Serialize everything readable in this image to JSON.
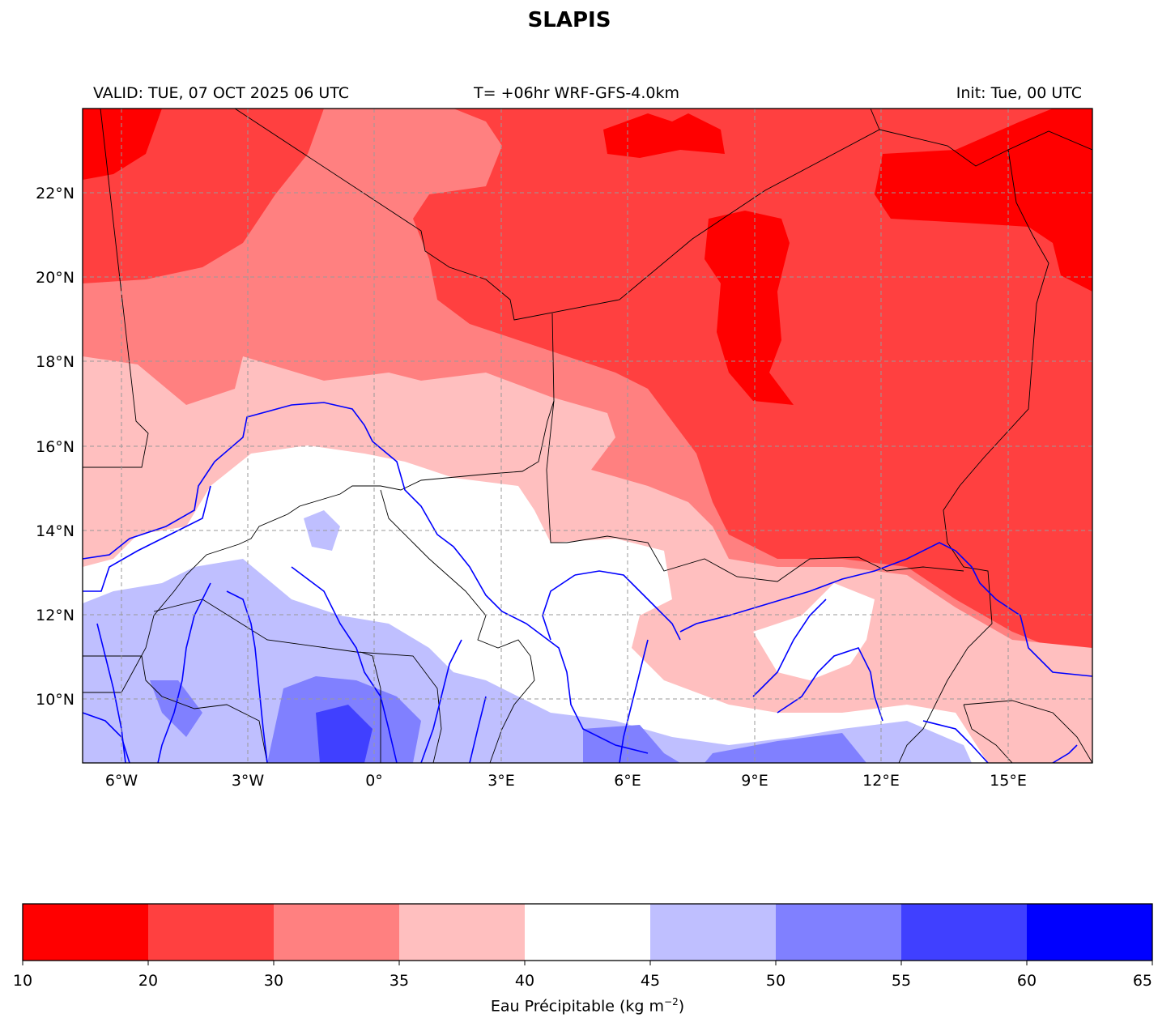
{
  "title": "SLAPIS",
  "header": {
    "valid": "VALID: TUE, 07 OCT 2025 06 UTC",
    "forecast": "T= +06hr WRF-GFS-4.0km",
    "init": "Init: Tue, 00 UTC"
  },
  "map": {
    "lon_range": [
      -7,
      17
    ],
    "lat_range": [
      8.5,
      24
    ],
    "lon_ticks": [
      {
        "value": -6,
        "label": "6°W"
      },
      {
        "value": -3,
        "label": "3°W"
      },
      {
        "value": 0,
        "label": "0°"
      },
      {
        "value": 3,
        "label": "3°E"
      },
      {
        "value": 6,
        "label": "6°E"
      },
      {
        "value": 9,
        "label": "9°E"
      },
      {
        "value": 12,
        "label": "12°E"
      },
      {
        "value": 15,
        "label": "15°E"
      }
    ],
    "lat_ticks": [
      {
        "value": 22,
        "label": "22°N"
      },
      {
        "value": 20,
        "label": "20°N"
      },
      {
        "value": 18,
        "label": "18°N"
      },
      {
        "value": 16,
        "label": "16°N"
      },
      {
        "value": 14,
        "label": "14°N"
      },
      {
        "value": 12,
        "label": "12°N"
      },
      {
        "value": 10,
        "label": "10°N"
      }
    ],
    "gridlines": true,
    "border_color": "#000000",
    "river_color": "#0000ff"
  },
  "colorbar": {
    "label": "Eau Précipitable (kg m",
    "label_exponent": "−2",
    "label_close": ")",
    "bounds": [
      10,
      20,
      30,
      35,
      40,
      45,
      50,
      55,
      60,
      65
    ],
    "tick_labels": [
      "10",
      "20",
      "30",
      "35",
      "40",
      "45",
      "50",
      "55",
      "60",
      "65"
    ],
    "colors": [
      "#ff0000",
      "#ff4040",
      "#ff8080",
      "#ffbfbf",
      "#ffffff",
      "#bfbfff",
      "#8080ff",
      "#4040ff",
      "#0000ff"
    ]
  }
}
